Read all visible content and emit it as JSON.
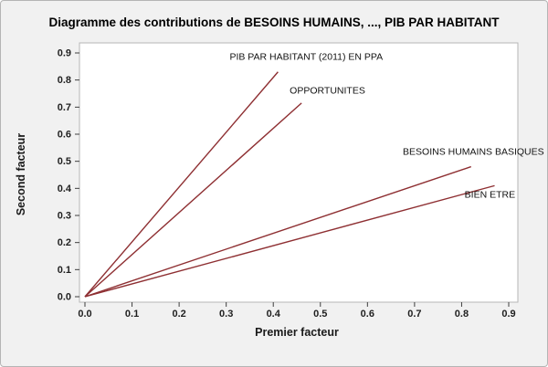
{
  "window": {
    "background": "#f1f1f1",
    "border_color": "#b5b5b5"
  },
  "chart_data": {
    "type": "line",
    "title": "Diagramme des contributions de BESOINS HUMAINS, ..., PIB PAR HABITANT",
    "xlabel": "Premier facteur",
    "ylabel": "Second facteur",
    "xlim": [
      0.0,
      0.9
    ],
    "ylim": [
      0.0,
      0.9
    ],
    "xticks": [
      0.0,
      0.1,
      0.2,
      0.3,
      0.4,
      0.5,
      0.6,
      0.7,
      0.8,
      0.9
    ],
    "yticks": [
      0.0,
      0.1,
      0.2,
      0.3,
      0.4,
      0.5,
      0.6,
      0.7,
      0.8,
      0.9
    ],
    "grid": false,
    "legend": "none",
    "plot_bg": "#ffffff",
    "line_color": "#8e2f32",
    "series": [
      {
        "name": "PIB PAR HABITANT (2011) EN PPA",
        "x": [
          0.0,
          0.41
        ],
        "y": [
          0.0,
          0.83
        ],
        "label_x": 0.47,
        "label_y": 0.875
      },
      {
        "name": "OPPORTUNITES",
        "x": [
          0.0,
          0.46
        ],
        "y": [
          0.0,
          0.715
        ],
        "label_x": 0.515,
        "label_y": 0.75
      },
      {
        "name": "BESOINS HUMAINS BASIQUES",
        "x": [
          0.0,
          0.82
        ],
        "y": [
          0.0,
          0.48
        ],
        "label_x": 0.825,
        "label_y": 0.525
      },
      {
        "name": "BIEN ETRE",
        "x": [
          0.0,
          0.87
        ],
        "y": [
          0.0,
          0.41
        ],
        "label_x": 0.86,
        "label_y": 0.365
      }
    ]
  }
}
